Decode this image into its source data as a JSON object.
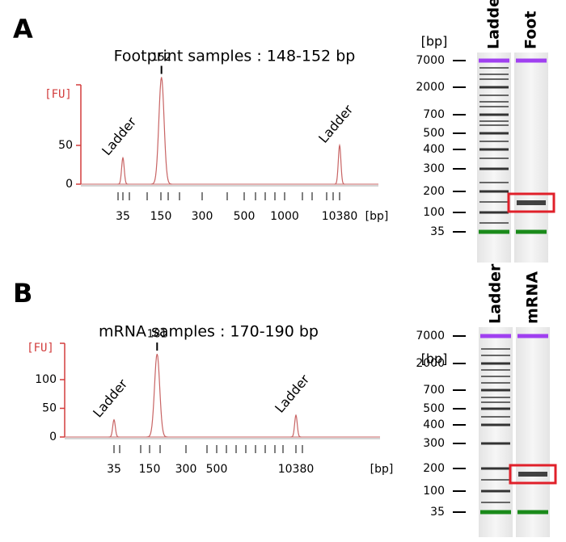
{
  "panels": [
    {
      "letter": "A",
      "title": "Footprint samples : 148-152 bp",
      "electropherogram": {
        "y_label": "[FU]",
        "ylim": [
          0,
          130
        ],
        "yticks": [
          0,
          50
        ],
        "x_label": "[bp]",
        "xticks": [
          35,
          150,
          300,
          500,
          1000,
          10380
        ],
        "peaks": [
          {
            "name": "Ladder",
            "bp": 35,
            "fu": 34
          },
          {
            "bp": 152,
            "fu": 138
          },
          {
            "name": "Ladder",
            "bp": 10380,
            "fu": 50
          }
        ]
      },
      "gel": {
        "unit": "[bp]",
        "lanes": [
          "Ladder",
          "Foot"
        ],
        "size_labels": [
          7000,
          2000,
          700,
          500,
          400,
          300,
          200,
          100,
          35
        ]
      }
    },
    {
      "letter": "B",
      "title": "mRNA samples : 170-190 bp",
      "electropherogram": {
        "y_label": "[FU]",
        "ylim": [
          0,
          163
        ],
        "yticks": [
          0,
          50,
          100
        ],
        "x_label": "[bp]",
        "xticks": [
          35,
          150,
          300,
          500,
          10380
        ],
        "peaks": [
          {
            "name": "Ladder",
            "bp": 35,
            "fu": 30
          },
          {
            "bp": 181,
            "fu": 145
          },
          {
            "name": "Ladder",
            "bp": 10380,
            "fu": 38
          }
        ]
      },
      "gel": {
        "unit": "[bp]",
        "lanes": [
          "Ladder",
          "mRNA"
        ],
        "size_labels": [
          7000,
          2000,
          700,
          500,
          400,
          300,
          200,
          100,
          35
        ]
      }
    }
  ]
}
